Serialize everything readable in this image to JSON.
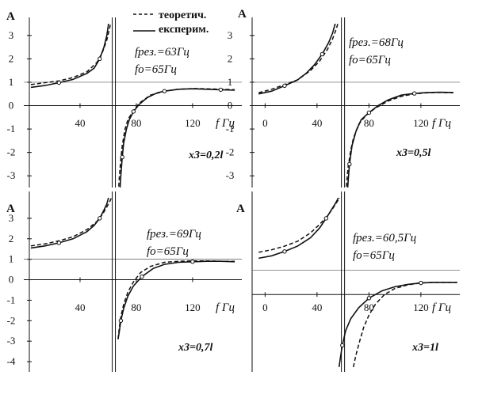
{
  "legend": {
    "theoretical": "теоретич.",
    "experimental": "експерим."
  },
  "chart_data": [
    {
      "type": "line",
      "ylabel": "A",
      "xlabel": "f Гц",
      "params": [
        "fрез.=63Гц",
        "fo=65Гц"
      ],
      "position": "x3=0,2l",
      "xticks": [
        "40",
        "80",
        "120"
      ],
      "yticks": [
        "3",
        "2",
        "1",
        "0",
        "-1",
        "-2",
        "-3"
      ],
      "xlim": [
        0,
        155
      ],
      "ylim": [
        -3.5,
        3.5
      ],
      "asymptote": 64,
      "series": [
        {
          "name": "теоретич.",
          "x": [
            5,
            15,
            25,
            35,
            45,
            52,
            56,
            59,
            61,
            62,
            63
          ],
          "y": [
            0.9,
            0.98,
            1.06,
            1.2,
            1.45,
            1.85,
            2.3,
            2.8,
            3.3,
            3.6,
            4
          ]
        },
        {
          "name": "теоретич.",
          "x": [
            67,
            68,
            69,
            70,
            72,
            74,
            78,
            82,
            90,
            100,
            110,
            120,
            130,
            140,
            150
          ],
          "y": [
            -4,
            -3,
            -2.3,
            -1.7,
            -1,
            -0.6,
            -0.2,
            0.1,
            0.45,
            0.62,
            0.7,
            0.73,
            0.72,
            0.7,
            0.68
          ]
        },
        {
          "name": "експерим.",
          "x": [
            5,
            15,
            25,
            35,
            45,
            50,
            54,
            57,
            59,
            60,
            61
          ],
          "y": [
            0.78,
            0.86,
            0.98,
            1.12,
            1.38,
            1.6,
            2,
            2.5,
            3,
            3.4,
            4
          ]
        },
        {
          "name": "експерим.",
          "x": [
            68,
            69,
            70,
            71,
            73,
            75,
            78,
            82,
            88,
            95,
            100,
            110,
            120,
            130,
            140,
            150
          ],
          "y": [
            -4,
            -3,
            -2.2,
            -1.6,
            -1,
            -0.6,
            -0.25,
            0.05,
            0.35,
            0.55,
            0.62,
            0.7,
            0.72,
            0.7,
            0.68,
            0.66
          ]
        }
      ]
    },
    {
      "type": "line",
      "ylabel": "A",
      "xlabel": "f Гц",
      "params": [
        "fрез.=68Гц",
        "fo=65Гц"
      ],
      "position": "x3=0,5l",
      "xticks": [
        "0",
        "40",
        "80",
        "120"
      ],
      "yticks": [
        "3",
        "2",
        "1",
        "0",
        "-1",
        "-2",
        "-3"
      ],
      "xlim": [
        -10,
        150
      ],
      "ylim": [
        -3.5,
        3.5
      ],
      "asymptote": 60,
      "series": [
        {
          "name": "теоретич.",
          "x": [
            -5,
            5,
            15,
            25,
            35,
            42,
            48,
            52,
            55,
            57,
            58
          ],
          "y": [
            0.55,
            0.7,
            0.9,
            1.1,
            1.5,
            1.9,
            2.4,
            2.85,
            3.3,
            3.7,
            4
          ]
        },
        {
          "name": "теоретич.",
          "x": [
            62,
            63,
            64,
            66,
            68,
            72,
            78,
            85,
            95,
            105,
            115,
            125,
            135,
            145
          ],
          "y": [
            -4,
            -3.2,
            -2.6,
            -1.9,
            -1.4,
            -0.8,
            -0.4,
            -0.1,
            0.2,
            0.4,
            0.5,
            0.55,
            0.56,
            0.55
          ]
        },
        {
          "name": "експерим.",
          "x": [
            -5,
            5,
            15,
            25,
            32,
            38,
            44,
            49,
            52,
            54,
            55
          ],
          "y": [
            0.5,
            0.62,
            0.85,
            1.1,
            1.4,
            1.75,
            2.2,
            2.7,
            3.1,
            3.5,
            4
          ]
        },
        {
          "name": "експерим.",
          "x": [
            63,
            64,
            65,
            67,
            70,
            74,
            80,
            87,
            95,
            105,
            115,
            125,
            135,
            145
          ],
          "y": [
            -4,
            -3.2,
            -2.5,
            -1.7,
            -1.1,
            -0.6,
            -0.3,
            0,
            0.25,
            0.45,
            0.52,
            0.56,
            0.57,
            0.56
          ]
        }
      ]
    },
    {
      "type": "line",
      "ylabel": "A",
      "xlabel": "f Гц",
      "params": [
        "fрез.=69Гц",
        "fo=65Гц"
      ],
      "position": "x3=0,7l",
      "xticks": [
        "40",
        "80",
        "120"
      ],
      "yticks": [
        "3",
        "2",
        "1",
        "0",
        "-1",
        "-2",
        "-3",
        "-4"
      ],
      "xlim": [
        0,
        155
      ],
      "ylim": [
        -4.5,
        4
      ],
      "asymptote": 64,
      "series": [
        {
          "name": "теоретич.",
          "x": [
            5,
            15,
            25,
            35,
            45,
            52,
            56,
            59,
            61,
            62,
            63
          ],
          "y": [
            1.65,
            1.75,
            1.9,
            2.1,
            2.45,
            2.85,
            3.2,
            3.55,
            3.8,
            3.95,
            4.2
          ]
        },
        {
          "name": "теоретич.",
          "x": [
            67,
            68,
            69,
            71,
            74,
            78,
            83,
            90,
            100,
            110,
            120,
            130,
            140,
            150
          ],
          "y": [
            -2.9,
            -2.3,
            -1.8,
            -1.2,
            -0.6,
            -0.1,
            0.35,
            0.65,
            0.85,
            0.9,
            0.92,
            0.92,
            0.9,
            0.9
          ]
        },
        {
          "name": "експерим.",
          "x": [
            5,
            15,
            25,
            35,
            45,
            50,
            54,
            57,
            59,
            60,
            61
          ],
          "y": [
            1.55,
            1.65,
            1.8,
            2,
            2.35,
            2.65,
            3,
            3.4,
            3.7,
            3.95,
            4.2
          ]
        },
        {
          "name": "експерим.",
          "x": [
            67,
            68,
            69,
            71,
            74,
            78,
            84,
            92,
            100,
            110,
            120,
            130,
            140,
            150
          ],
          "y": [
            -2.9,
            -2.5,
            -2,
            -1.4,
            -0.8,
            -0.3,
            0.15,
            0.55,
            0.75,
            0.85,
            0.88,
            0.9,
            0.9,
            0.88
          ]
        }
      ]
    },
    {
      "type": "line",
      "ylabel": "A",
      "xlabel": "f Гц",
      "params": [
        "fрез.=60,5Гц",
        "fo=65Гц"
      ],
      "position": "x3=1l",
      "xticks": [
        "0",
        "40",
        "80",
        "120"
      ],
      "yticks": [],
      "xlim": [
        -10,
        150
      ],
      "ylim": [
        -3.2,
        4
      ],
      "asymptote": 60,
      "series": [
        {
          "name": "теоретич.",
          "x": [
            -5,
            5,
            15,
            25,
            35,
            42,
            48,
            52,
            55,
            57,
            58
          ],
          "y": [
            1.75,
            1.85,
            2,
            2.2,
            2.55,
            2.9,
            3.25,
            3.55,
            3.8,
            3.95,
            4.1
          ]
        },
        {
          "name": "теоретич.",
          "x": [
            68,
            70,
            73,
            76,
            80,
            85,
            92,
            100,
            110,
            120,
            130,
            140,
            148
          ],
          "y": [
            -3,
            -2.5,
            -1.9,
            -1.35,
            -0.85,
            -0.4,
            0,
            0.25,
            0.4,
            0.48,
            0.5,
            0.5,
            0.5
          ]
        },
        {
          "name": "експерим.",
          "x": [
            -5,
            5,
            15,
            25,
            35,
            42,
            47,
            51,
            54,
            56,
            57
          ],
          "y": [
            1.5,
            1.6,
            1.78,
            2,
            2.35,
            2.75,
            3.15,
            3.5,
            3.75,
            3.95,
            4.1
          ]
        },
        {
          "name": "експерим.",
          "x": [
            57,
            58,
            59.5,
            62,
            66,
            72,
            80,
            90,
            100,
            110,
            120,
            130,
            140,
            148
          ],
          "y": [
            -3,
            -2.6,
            -2.1,
            -1.5,
            -1,
            -0.55,
            -0.15,
            0.15,
            0.32,
            0.42,
            0.48,
            0.5,
            0.5,
            0.5
          ]
        }
      ]
    }
  ]
}
